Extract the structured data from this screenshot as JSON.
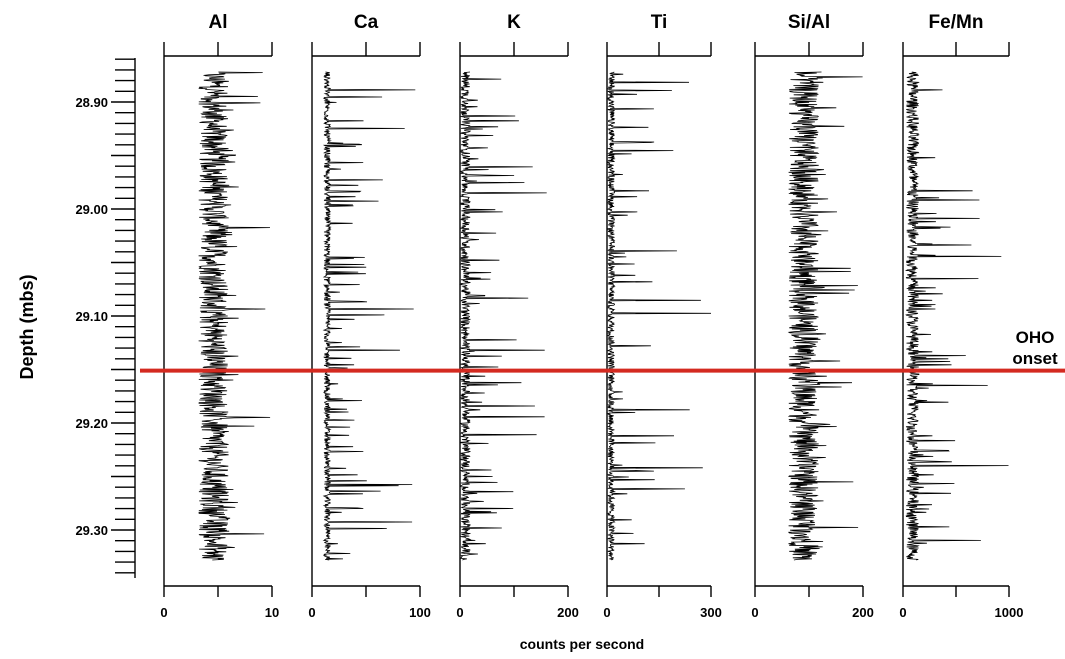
{
  "chart_data": {
    "type": "line",
    "orientation": "vertical-depth-profile",
    "ylabel": "Depth (mbs)",
    "xlabel": "counts per second",
    "y_axis": {
      "range": [
        28.86,
        29.34
      ],
      "inverted": true,
      "ticks": [
        28.9,
        29.0,
        29.1,
        29.2,
        29.3
      ],
      "tick_labels": [
        "28.90",
        "29.00",
        "29.10",
        "29.20",
        "29.30"
      ],
      "minor_step": 0.01
    },
    "annotation": {
      "label_line1": "OHO",
      "label_line2": "onset",
      "depth": 29.151,
      "color": "#d42a20"
    },
    "grid": false,
    "legend": "none",
    "series": [
      {
        "name": "Al",
        "xlim": [
          0,
          10
        ],
        "ticks": [
          0,
          5,
          10
        ],
        "tick_labels": [
          "0",
          "",
          "10"
        ],
        "baseline": 4.6,
        "spread": 1.4,
        "spike_max": 9.9,
        "depth_range": [
          28.872,
          29.328
        ]
      },
      {
        "name": "Ca",
        "xlim": [
          0,
          100
        ],
        "ticks": [
          0,
          50,
          100
        ],
        "tick_labels": [
          "0",
          "",
          "100"
        ],
        "baseline": 14,
        "spread": 3,
        "spike_max": 100,
        "depth_range": [
          28.872,
          29.328
        ]
      },
      {
        "name": "K",
        "xlim": [
          0,
          200
        ],
        "ticks": [
          0,
          100,
          200
        ],
        "tick_labels": [
          "0",
          "",
          "200"
        ],
        "baseline": 10,
        "spread": 9,
        "spike_max": 165,
        "depth_range": [
          28.872,
          29.328
        ]
      },
      {
        "name": "Ti",
        "xlim": [
          0,
          300
        ],
        "ticks": [
          0,
          150,
          300
        ],
        "tick_labels": [
          "0",
          "",
          "300"
        ],
        "baseline": 12,
        "spread": 10,
        "spike_max": 305,
        "depth_range": [
          28.872,
          29.328
        ]
      },
      {
        "name": "Si/Al",
        "xlim": [
          0,
          200
        ],
        "ticks": [
          0,
          100,
          200
        ],
        "tick_labels": [
          "0",
          "",
          "200"
        ],
        "baseline": 90,
        "spread": 28,
        "spike_max": 200,
        "depth_range": [
          28.872,
          29.328
        ]
      },
      {
        "name": "Fe/Mn",
        "xlim": [
          0,
          1000
        ],
        "ticks": [
          0,
          500,
          1000
        ],
        "tick_labels": [
          "0",
          "",
          "1000"
        ],
        "baseline": 90,
        "spread": 60,
        "spike_max": 1000,
        "depth_range": [
          28.872,
          29.328
        ]
      }
    ]
  }
}
